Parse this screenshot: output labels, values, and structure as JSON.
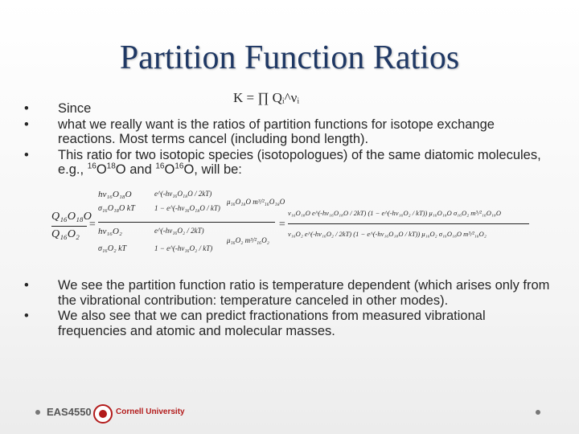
{
  "slide": {
    "title": "Partition Function Ratios",
    "bullets_top": [
      {
        "text": "Since"
      },
      {
        "text": "what we really want is the ratios of partition functions for isotope exchange reactions. Most terms cancel (including bond length)."
      },
      {
        "pre": "This ratio for two isotopic species (isotopologues) of the same diatomic molecules, e.g., ",
        "s1": "16",
        "e1": "O",
        "s2": "18",
        "e2": "O and ",
        "s3": "16",
        "e3": "O",
        "s4": "16",
        "e4": "O, will be:"
      }
    ],
    "bullets_bottom": [
      "We see the partition function ratio is temperature dependent (which arises only from the vibrational contribution: temperature canceled in other modes).",
      "We also see that we can predict fractionations from measured vibrational frequencies and atomic and molecular masses."
    ],
    "bullet_char": "•",
    "k_formula": "K = ∏ Qᵢ^νᵢ"
  },
  "equation": {
    "lhs_num": "Q₁₆O₁₈O",
    "lhs_den": "Q₁₆O₂",
    "eq_sign": "=",
    "mid_top_a": "hν₁₆O₁₈O",
    "mid_top_b": "e^(-hν₁₆O₁₈O / 2kT)",
    "mid_top_c": "σ₁₆O₁₈O kT",
    "mid_top_d": "1 − e^(-hν₁₆O₁₈O / kT)",
    "mid_top_e": "μ₁₆O₁₈O m³/²₁₆O₁₈O",
    "mid_bot_a": "hν₁₆O₂",
    "mid_bot_b": "e^(-hν₁₆O₂ / 2kT)",
    "mid_bot_c": "σ₁₆O₂ kT",
    "mid_bot_d": "1 − e^(-hν₁₆O₂ / kT)",
    "mid_bot_e": "μ₁₆O₂ m³/²₁₆O₂",
    "rhs_num": "ν₁₆O₁₈O e^(-hν₁₆O₁₈O / 2kT) (1 − e^(-hν₁₆O₂ / kT)) μ₁₆O₁₈O σ₁₆O₂ m³/²₁₆O₁₈O",
    "rhs_den": "ν₁₆O₂ e^(-hν₁₆O₂ / 2kT) (1 − e^(-hν₁₆O₁₈O / kT)) μ₁₆O₂ σ₁₆O₁₈O m³/²₁₆O₂"
  },
  "footer": {
    "course": "EAS4550",
    "university": "Cornell University"
  }
}
